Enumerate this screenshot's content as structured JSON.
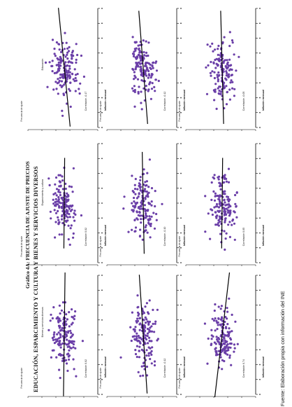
{
  "header": {
    "graph_label": "Gráfico 4A: FRECUENCIA DE AJUSTE DE PRECIOS",
    "subtitle_line1": "EDUCACIÓN, ESPARCIMIENTO Y CULTURA Y BIENES Y SERVICIOS DIVERSOS",
    "subtitle_line2": ""
  },
  "source": "Fuente: Elaboración propia con información del INE",
  "chart_data": [
    {
      "type": "scatter",
      "panel": "Educación",
      "correlation": "Correlación -0,17",
      "xlabel": "Inflación mensual",
      "ylabel": "Frecuencia de ajuste",
      "slope": -0.6,
      "trend_spread": 1.05,
      "points_seed": 11
    },
    {
      "type": "scatter",
      "panel": "",
      "correlation": "Correlación -0,12",
      "xlabel": "Inflación mensual",
      "ylabel": "Frecuencia de ajuste",
      "slope": -0.45,
      "trend_spread": 1.0,
      "points_seed": 23
    },
    {
      "type": "scatter",
      "panel": "",
      "correlation": "Correlación -0,05",
      "xlabel": "Inflación mensual",
      "ylabel": "Frecuencia de ajuste",
      "slope": -0.15,
      "trend_spread": 1.0,
      "points_seed": 37
    },
    {
      "type": "scatter",
      "panel": "Esparcimiento y cultura",
      "correlation": "Correlación 0,02",
      "xlabel": "Inflación mensual",
      "ylabel": "Frecuencia de ajuste",
      "slope": 0.04,
      "trend_spread": 0.8,
      "points_seed": 41
    },
    {
      "type": "scatter",
      "panel": "",
      "correlation": "Correlación -0,10",
      "xlabel": "Inflación mensual",
      "ylabel": "Frecuencia de ajuste",
      "slope": -0.1,
      "trend_spread": 0.9,
      "points_seed": 53
    },
    {
      "type": "scatter",
      "panel": "",
      "correlation": "Correlación 0,05",
      "xlabel": "Inflación mensual",
      "ylabel": "Frecuencia de ajuste",
      "slope": 0.05,
      "trend_spread": 0.8,
      "points_seed": 67
    },
    {
      "type": "scatter",
      "panel": "Bienes y servicios diversos",
      "correlation": "Correlación 0,02",
      "xlabel": "Inflación mensual",
      "ylabel": "Frecuencia de ajuste",
      "slope": 0.08,
      "trend_spread": 1.1,
      "points_seed": 79
    },
    {
      "type": "scatter",
      "panel": "",
      "correlation": "Correlación -0,12",
      "xlabel": "Inflación mensual",
      "ylabel": "Frecuencia de ajuste",
      "slope": -0.4,
      "trend_spread": 1.05,
      "points_seed": 83
    },
    {
      "type": "scatter",
      "panel": "",
      "correlation": "Correlación 0,74",
      "xlabel": "Inflación mensual",
      "ylabel": "Frecuencia de ajuste",
      "slope": 0.75,
      "trend_spread": 1.2,
      "points_seed": 97
    }
  ],
  "colors": {
    "points": "#6b3fa8",
    "line": "#000000",
    "axis": "#000000"
  }
}
